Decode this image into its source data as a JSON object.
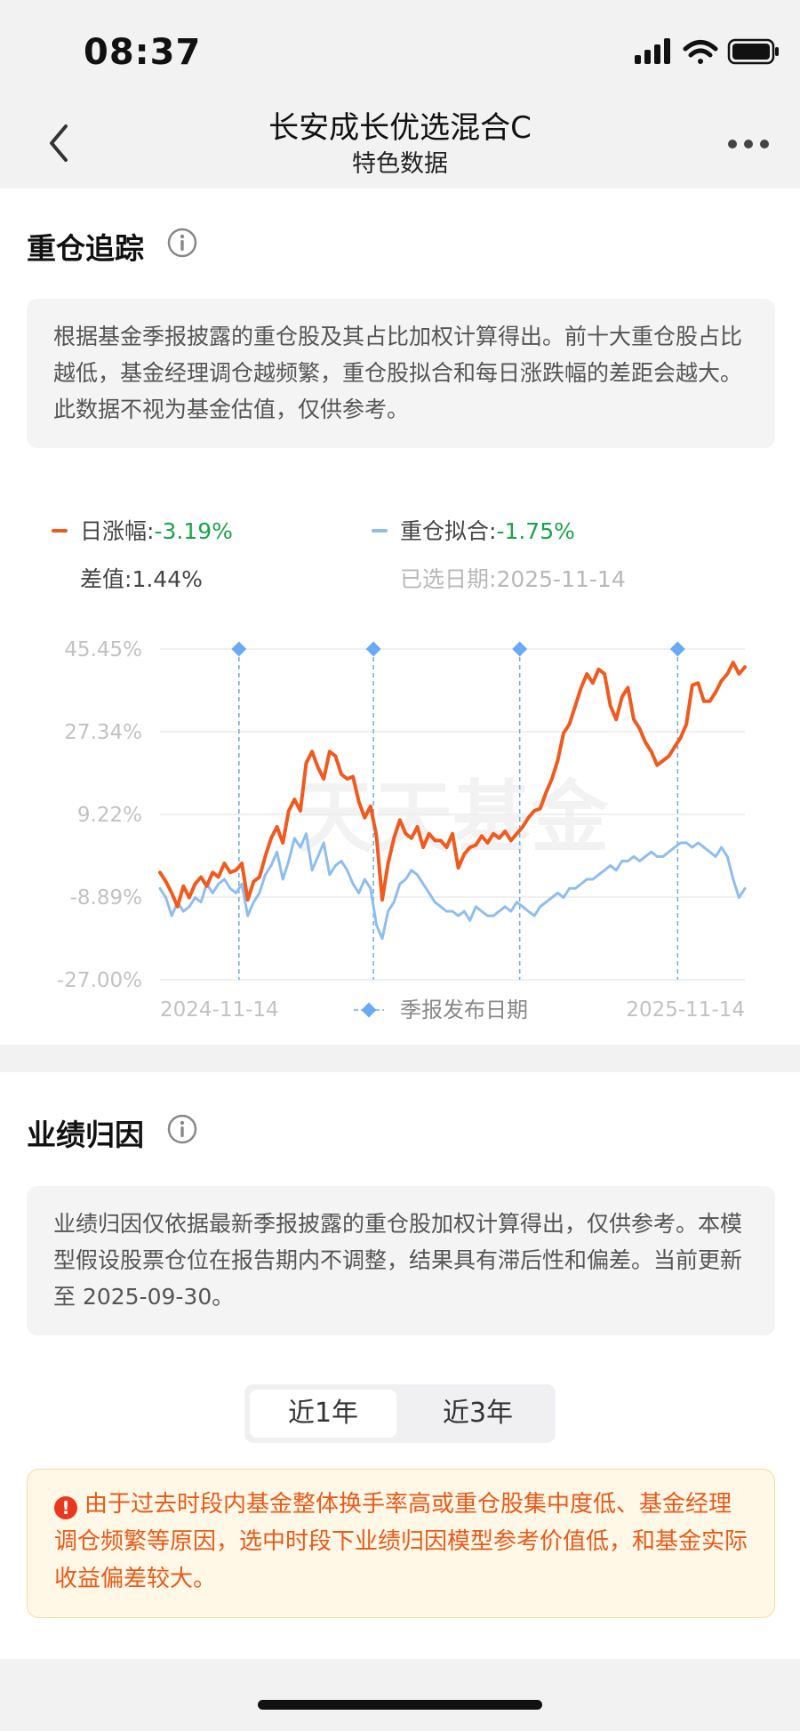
{
  "status": {
    "time": "08:37"
  },
  "nav": {
    "title": "长安成长优选混合C",
    "subtitle": "特色数据"
  },
  "tracking": {
    "title": "重仓追踪",
    "note": "根据基金季报披露的重仓股及其占比加权计算得出。前十大重仓股占比越低，基金经理调仓越频繁，重仓股拟合和每日涨跌幅的差距会越大。此数据不视为基金估值，仅供参考。",
    "legend": {
      "daily_label": "日涨幅:",
      "daily_value": "-3.19%",
      "fit_label": "重仓拟合:",
      "fit_value": "-1.75%",
      "diff_label": "差值:",
      "diff_value": "1.44%",
      "date_label": "已选日期:",
      "date_value": "2025-11-14"
    },
    "colors": {
      "daily": "#f05a1e",
      "fit": "#8fbdee",
      "marker": "#6aaaf2",
      "negative": "#1aa34a"
    }
  },
  "chart_data": {
    "type": "line",
    "y_ticks": [
      "45.45%",
      "27.34%",
      "9.22%",
      "-8.89%",
      "-27.00%"
    ],
    "ylim": [
      -27.0,
      45.45
    ],
    "x_start": "2024-11-14",
    "x_end": "2025-11-14",
    "marker_legend": "季报发布日期",
    "watermark": "天天基金",
    "quarter_markers_t": [
      0.135,
      0.365,
      0.615,
      0.885
    ],
    "series": [
      {
        "key": "daily",
        "t": [
          0,
          0.01,
          0.02,
          0.03,
          0.04,
          0.05,
          0.06,
          0.07,
          0.08,
          0.09,
          0.1,
          0.11,
          0.12,
          0.13,
          0.14,
          0.15,
          0.16,
          0.17,
          0.18,
          0.19,
          0.2,
          0.21,
          0.22,
          0.23,
          0.24,
          0.25,
          0.26,
          0.27,
          0.28,
          0.29,
          0.3,
          0.31,
          0.32,
          0.33,
          0.34,
          0.35,
          0.36,
          0.37,
          0.38,
          0.39,
          0.4,
          0.41,
          0.42,
          0.43,
          0.44,
          0.45,
          0.46,
          0.47,
          0.48,
          0.49,
          0.5,
          0.51,
          0.52,
          0.53,
          0.54,
          0.55,
          0.56,
          0.57,
          0.58,
          0.59,
          0.6,
          0.61,
          0.62,
          0.63,
          0.64,
          0.65,
          0.66,
          0.67,
          0.68,
          0.69,
          0.7,
          0.71,
          0.72,
          0.73,
          0.74,
          0.75,
          0.76,
          0.77,
          0.78,
          0.79,
          0.8,
          0.81,
          0.82,
          0.83,
          0.84,
          0.85,
          0.86,
          0.87,
          0.88,
          0.89,
          0.9,
          0.91,
          0.92,
          0.93,
          0.94,
          0.95,
          0.96,
          0.97,
          0.98,
          0.99,
          1
        ],
        "y": [
          -3.5,
          -5.5,
          -8,
          -11,
          -6.5,
          -9,
          -6,
          -4.5,
          -6.5,
          -3.5,
          -4.5,
          -1.5,
          -3.5,
          -3,
          -1.5,
          -9.5,
          -5.5,
          -4.5,
          0,
          4,
          6.5,
          3,
          10,
          12.5,
          10,
          20.5,
          23,
          19.5,
          17,
          23,
          22,
          18,
          17,
          17.5,
          12,
          8.5,
          11,
          4.5,
          -9.5,
          -1.5,
          4,
          8,
          5,
          4,
          6.5,
          2,
          5,
          3.5,
          3.5,
          2,
          5,
          -2.5,
          0.5,
          2,
          2.5,
          4.5,
          3,
          5,
          4,
          5.5,
          3.5,
          5,
          6.5,
          8.5,
          10,
          10.5,
          14,
          17,
          21,
          27,
          29,
          33,
          37,
          40,
          38,
          41,
          40,
          33,
          30,
          35,
          37,
          30,
          28,
          25,
          23,
          20,
          21,
          22,
          24,
          26,
          29,
          37.5,
          38,
          34,
          34,
          36,
          38.5,
          40,
          42.5,
          40,
          41.5
        ]
      },
      {
        "key": "fit",
        "t": [
          0,
          0.01,
          0.02,
          0.03,
          0.04,
          0.05,
          0.06,
          0.07,
          0.08,
          0.09,
          0.1,
          0.11,
          0.12,
          0.13,
          0.14,
          0.15,
          0.16,
          0.17,
          0.18,
          0.19,
          0.2,
          0.21,
          0.22,
          0.23,
          0.24,
          0.25,
          0.26,
          0.27,
          0.28,
          0.29,
          0.3,
          0.31,
          0.32,
          0.33,
          0.34,
          0.35,
          0.36,
          0.37,
          0.38,
          0.39,
          0.4,
          0.41,
          0.42,
          0.43,
          0.44,
          0.45,
          0.46,
          0.47,
          0.48,
          0.49,
          0.5,
          0.51,
          0.52,
          0.53,
          0.54,
          0.55,
          0.56,
          0.57,
          0.58,
          0.59,
          0.6,
          0.61,
          0.62,
          0.63,
          0.64,
          0.65,
          0.66,
          0.67,
          0.68,
          0.69,
          0.7,
          0.71,
          0.72,
          0.73,
          0.74,
          0.75,
          0.76,
          0.77,
          0.78,
          0.79,
          0.8,
          0.81,
          0.82,
          0.83,
          0.84,
          0.85,
          0.86,
          0.87,
          0.88,
          0.89,
          0.9,
          0.91,
          0.92,
          0.93,
          0.94,
          0.95,
          0.96,
          0.97,
          0.98,
          0.99,
          1
        ],
        "y": [
          -7,
          -9,
          -13,
          -10,
          -12,
          -11,
          -9,
          -10,
          -6,
          -8,
          -6,
          -5,
          -7,
          -8,
          -6,
          -13,
          -10,
          -8,
          -4,
          -2,
          1,
          -5,
          -1,
          4,
          2,
          5,
          -3,
          0,
          3,
          -4,
          -2,
          -1,
          -3,
          -6,
          -8,
          -5,
          -7,
          -15,
          -18,
          -12,
          -10,
          -6,
          -5,
          -3,
          -4,
          -6,
          -8,
          -10,
          -11,
          -12,
          -12,
          -13,
          -12,
          -14,
          -11,
          -12,
          -13,
          -13,
          -12,
          -11,
          -12,
          -10,
          -11,
          -12,
          -13,
          -11,
          -10,
          -9,
          -8,
          -9,
          -7,
          -7,
          -6,
          -5,
          -5,
          -4,
          -3,
          -2,
          -3,
          -1,
          -1,
          0,
          -1,
          0,
          1,
          0,
          0,
          1,
          2,
          3,
          3,
          2,
          3,
          2,
          1,
          0,
          2,
          0,
          -5,
          -9,
          -7
        ]
      }
    ]
  },
  "attribution": {
    "title": "业绩归因",
    "note": "业绩归因仅依据最新季报披露的重仓股加权计算得出，仅供参考。本模型假设股票仓位在报告期内不调整，结果具有滞后性和偏差。当前更新至 2025-09-30。",
    "tabs": [
      "近1年",
      "近3年"
    ],
    "warning": "由于过去时段内基金整体换手率高或重仓股集中度低、基金经理调仓频繁等原因，选中时段下业绩归因模型参考价值低，和基金实际收益偏差较大。"
  }
}
